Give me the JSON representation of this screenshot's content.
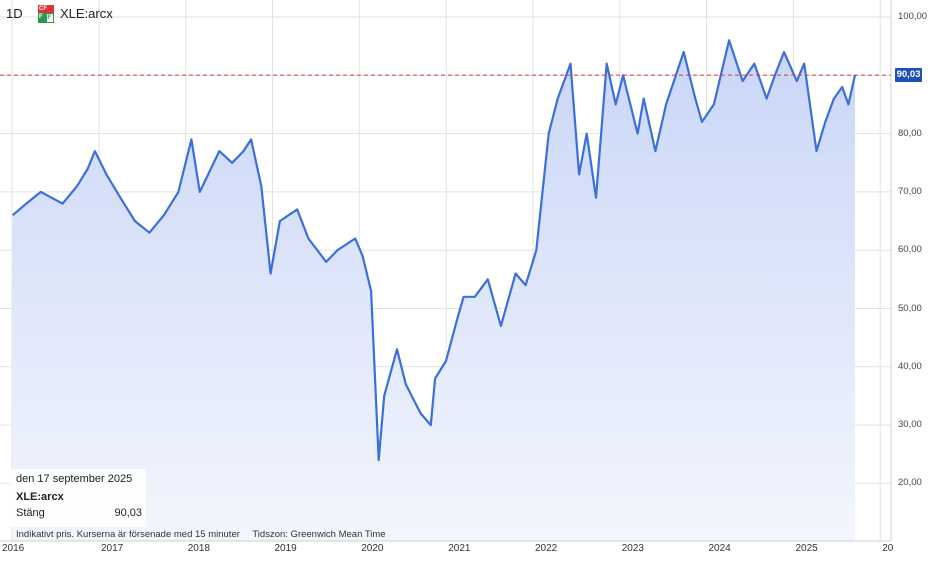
{
  "header": {
    "interval": "1D",
    "logo_text_top": "CF",
    "logo_text_bl": "F",
    "logo_text_br": "F",
    "symbol": "XLE:arcx"
  },
  "tooltip": {
    "date": "den 17 september 2025",
    "symbol": "XLE:arcx",
    "label": "Stäng",
    "value": "90,03"
  },
  "footer": {
    "delayed": "Indikativt pris. Kurserna är försenade med 15 minuter",
    "timezone": "Tidszon: Greenwich Mean Time"
  },
  "colors": {
    "line": "#3b6fdc",
    "fill_top": "#c9d6f7",
    "fill_bottom": "#f3f6fd",
    "ref_line": "#d63a3a",
    "price_tag": "#1f4fb8",
    "grid": "#e2e2e2"
  },
  "chart_data": {
    "type": "area",
    "title": "",
    "xlabel": "",
    "ylabel": "",
    "x_ticks": [
      "2016",
      "2017",
      "2018",
      "2019",
      "2020",
      "2021",
      "2022",
      "2023",
      "2024",
      "2025",
      "20"
    ],
    "y_ticks": [
      "100,00",
      "90,00",
      "80,00",
      "70,00",
      "60,00",
      "50,00",
      "40,00",
      "30,00",
      "20,00"
    ],
    "ylim": [
      10,
      102
    ],
    "xlim": [
      "2016-01-01",
      "2025-12-31"
    ],
    "last_price": "90,03",
    "last_value": 90.03,
    "grid": true,
    "series": [
      {
        "x": [
          "2016-01-04",
          "2016-03-01",
          "2016-05-01",
          "2016-06-15",
          "2016-08-01",
          "2016-10-01",
          "2016-11-15",
          "2016-12-15",
          "2017-02-01",
          "2017-04-01",
          "2017-06-01",
          "2017-08-01",
          "2017-10-01",
          "2017-12-01",
          "2018-01-25",
          "2018-03-01",
          "2018-05-22",
          "2018-07-15",
          "2018-09-01",
          "2018-10-03",
          "2018-11-15",
          "2018-12-24",
          "2019-02-01",
          "2019-04-15",
          "2019-06-01",
          "2019-08-15",
          "2019-10-01",
          "2019-12-15",
          "2020-01-15",
          "2020-02-20",
          "2020-03-23",
          "2020-04-15",
          "2020-06-08",
          "2020-07-15",
          "2020-09-15",
          "2020-10-28",
          "2020-11-15",
          "2020-12-31",
          "2021-02-15",
          "2021-03-15",
          "2021-05-01",
          "2021-06-25",
          "2021-08-19",
          "2021-10-20",
          "2021-12-01",
          "2022-01-15",
          "2022-03-08",
          "2022-04-15",
          "2022-06-08",
          "2022-07-14",
          "2022-08-15",
          "2022-09-23",
          "2022-11-07",
          "2022-12-15",
          "2023-01-15",
          "2023-03-17",
          "2023-04-12",
          "2023-05-31",
          "2023-07-15",
          "2023-09-27",
          "2023-11-15",
          "2023-12-13",
          "2024-02-01",
          "2024-04-05",
          "2024-06-01",
          "2024-07-20",
          "2024-09-10",
          "2024-10-15",
          "2024-11-22",
          "2025-01-15",
          "2025-02-15",
          "2025-04-08",
          "2025-05-15",
          "2025-06-20",
          "2025-07-25",
          "2025-08-20",
          "2025-09-17"
        ],
        "y": [
          66,
          68,
          70,
          69,
          68,
          71,
          74,
          77,
          73,
          69,
          65,
          63,
          66,
          70,
          79,
          70,
          77,
          75,
          77,
          79,
          71,
          56,
          65,
          67,
          62,
          58,
          60,
          62,
          59,
          53,
          24,
          35,
          43,
          37,
          32,
          30,
          38,
          41,
          48,
          52,
          52,
          55,
          47,
          56,
          54,
          60,
          80,
          86,
          92,
          73,
          80,
          69,
          92,
          85,
          90,
          80,
          86,
          77,
          85,
          94,
          86,
          82,
          85,
          96,
          89,
          92,
          86,
          90,
          94,
          89,
          92,
          77,
          82,
          86,
          88,
          85,
          90.03
        ]
      }
    ]
  }
}
